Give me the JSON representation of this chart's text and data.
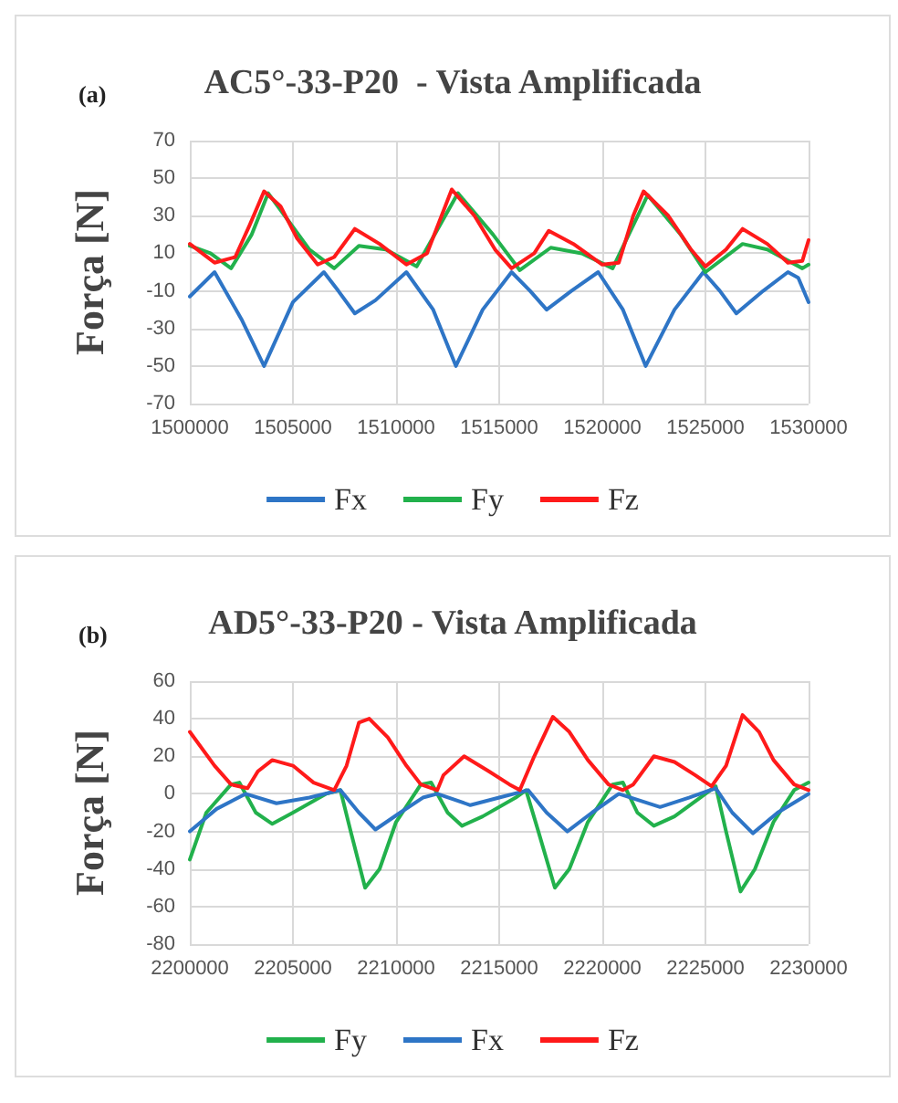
{
  "chart_data": [
    {
      "type": "line",
      "title": "AC5°-33-P20  - Vista Amplificada",
      "ylabel": "Força [N]",
      "annotations": [
        "(a)"
      ],
      "xlim": [
        1500000,
        1530000
      ],
      "xticks": [
        1500000,
        1505000,
        1510000,
        1515000,
        1520000,
        1525000,
        1530000
      ],
      "ylim": [
        -70,
        70
      ],
      "yticks": [
        -70,
        -50,
        -30,
        -10,
        10,
        30,
        50,
        70
      ],
      "grid": true,
      "legend": "bottom",
      "marker": "none",
      "line_style": "solid",
      "series": [
        {
          "name": "Fx",
          "color": "#2e75c6",
          "x": [
            1500000,
            1501200,
            1502500,
            1503600,
            1505000,
            1506500,
            1507200,
            1508000,
            1509000,
            1510500,
            1511800,
            1512900,
            1514200,
            1515600,
            1516500,
            1517300,
            1518500,
            1519800,
            1521000,
            1522100,
            1523500,
            1524900,
            1525700,
            1526500,
            1527800,
            1529000,
            1529500,
            1530000
          ],
          "values": [
            -13,
            0,
            -25,
            -50,
            -16,
            0,
            -10,
            -22,
            -15,
            0,
            -20,
            -50,
            -20,
            0,
            -10,
            -20,
            -10,
            0,
            -20,
            -50,
            -20,
            0,
            -10,
            -22,
            -10,
            0,
            -3,
            -16
          ]
        },
        {
          "name": "Fy",
          "color": "#22b14c",
          "x": [
            1500000,
            1501000,
            1502000,
            1503000,
            1503800,
            1504600,
            1505800,
            1507000,
            1508200,
            1509500,
            1511000,
            1513000,
            1514700,
            1516000,
            1517500,
            1519000,
            1520500,
            1522200,
            1523800,
            1525000,
            1526800,
            1528000,
            1529700,
            1530000
          ],
          "values": [
            14,
            10,
            2,
            20,
            42,
            30,
            12,
            2,
            14,
            12,
            3,
            42,
            20,
            1,
            13,
            10,
            2,
            41,
            20,
            0,
            15,
            12,
            2,
            4
          ]
        },
        {
          "name": "Fz",
          "color": "#ff1a1a",
          "x": [
            1500000,
            1501200,
            1502200,
            1502900,
            1503600,
            1504400,
            1505200,
            1506200,
            1507000,
            1508000,
            1509200,
            1510500,
            1511500,
            1512700,
            1513800,
            1514800,
            1515600,
            1516700,
            1517400,
            1518600,
            1520000,
            1520800,
            1521500,
            1522000,
            1523200,
            1524300,
            1525000,
            1526000,
            1526800,
            1528000,
            1529000,
            1529700,
            1530000
          ],
          "values": [
            15,
            5,
            8,
            25,
            43,
            35,
            18,
            4,
            8,
            23,
            15,
            4,
            10,
            44,
            30,
            12,
            2,
            10,
            22,
            15,
            4,
            5,
            30,
            43,
            30,
            12,
            3,
            12,
            23,
            15,
            5,
            6,
            17
          ]
        }
      ]
    },
    {
      "type": "line",
      "title": "AD5°-33-P20 - Vista Amplificada",
      "ylabel": "Força [N]",
      "annotations": [
        "(b)"
      ],
      "xlim": [
        2200000,
        2230000
      ],
      "xticks": [
        2200000,
        2205000,
        2210000,
        2215000,
        2220000,
        2225000,
        2230000
      ],
      "ylim": [
        -80,
        60
      ],
      "yticks": [
        -80,
        -60,
        -40,
        -20,
        0,
        20,
        40,
        60
      ],
      "grid": true,
      "legend": "bottom",
      "marker": "none",
      "line_style": "solid",
      "series": [
        {
          "name": "Fy",
          "color": "#22b14c",
          "x": [
            2200000,
            2200800,
            2202000,
            2202400,
            2203200,
            2204000,
            2205000,
            2206600,
            2207300,
            2207800,
            2208500,
            2209200,
            2210000,
            2211200,
            2211700,
            2212500,
            2213200,
            2214200,
            2215800,
            2216300,
            2216900,
            2217700,
            2218400,
            2219300,
            2220500,
            2221000,
            2221700,
            2222500,
            2223500,
            2225000,
            2225500,
            2226000,
            2226700,
            2227400,
            2228300,
            2229300,
            2230000
          ],
          "values": [
            -35,
            -10,
            5,
            6,
            -10,
            -16,
            -10,
            0,
            2,
            -20,
            -50,
            -40,
            -15,
            5,
            6,
            -10,
            -17,
            -12,
            -2,
            2,
            -20,
            -50,
            -40,
            -15,
            5,
            6,
            -10,
            -17,
            -12,
            0,
            4,
            -20,
            -52,
            -40,
            -15,
            2,
            6
          ]
        },
        {
          "name": "Fx",
          "color": "#2e75c6",
          "x": [
            2200000,
            2201300,
            2202700,
            2204200,
            2205800,
            2207300,
            2208200,
            2209000,
            2210200,
            2211300,
            2212000,
            2213600,
            2215000,
            2216400,
            2217300,
            2218300,
            2219500,
            2220800,
            2222800,
            2224200,
            2225500,
            2226300,
            2227300,
            2228500,
            2230000
          ],
          "values": [
            -20,
            -8,
            0,
            -5,
            -2,
            2,
            -10,
            -19,
            -10,
            -2,
            0,
            -6,
            -2,
            2,
            -10,
            -20,
            -10,
            0,
            -7,
            -2,
            3,
            -10,
            -21,
            -10,
            0
          ]
        },
        {
          "name": "Fz",
          "color": "#ff1a1a",
          "x": [
            2200000,
            2201200,
            2202000,
            2202800,
            2203300,
            2204000,
            2205000,
            2206000,
            2207000,
            2207600,
            2208200,
            2208700,
            2209600,
            2210500,
            2211200,
            2212000,
            2212300,
            2213300,
            2214500,
            2215500,
            2216000,
            2216700,
            2217600,
            2218400,
            2219300,
            2220300,
            2221000,
            2221500,
            2222500,
            2223500,
            2224500,
            2225300,
            2226000,
            2226800,
            2227600,
            2228300,
            2229300,
            2230000
          ],
          "values": [
            33,
            15,
            5,
            3,
            12,
            18,
            15,
            6,
            2,
            15,
            38,
            40,
            30,
            15,
            5,
            2,
            10,
            20,
            12,
            5,
            2,
            20,
            41,
            33,
            18,
            5,
            2,
            5,
            20,
            17,
            10,
            4,
            15,
            42,
            33,
            18,
            5,
            2
          ]
        }
      ]
    }
  ]
}
